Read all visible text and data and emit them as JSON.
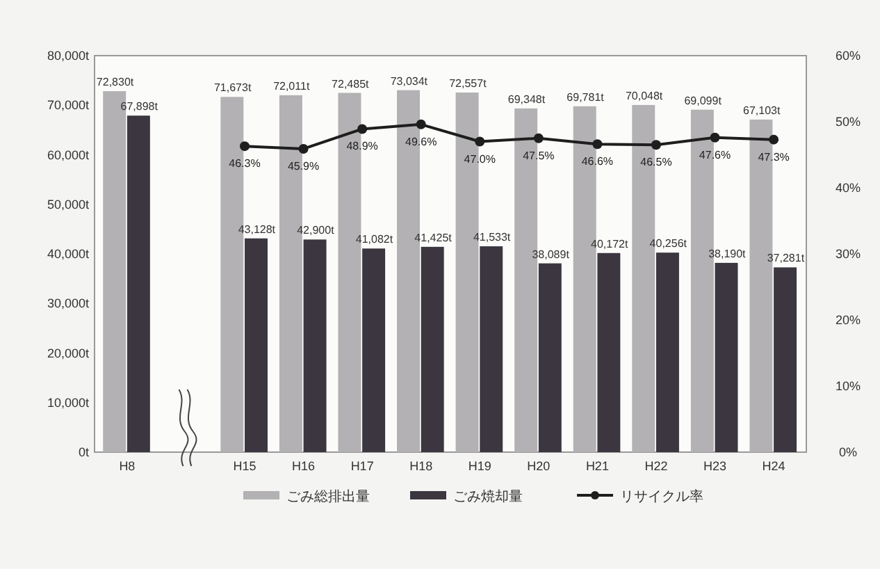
{
  "chart_data": {
    "type": "bar",
    "categories": [
      "H8",
      null,
      "H15",
      "H16",
      "H17",
      "H18",
      "H19",
      "H20",
      "H21",
      "H22",
      "H23",
      "H24"
    ],
    "series": [
      {
        "name": "ごみ総排出量",
        "color": "#b3b1b3",
        "values": [
          72830,
          null,
          71673,
          72011,
          72485,
          73034,
          72557,
          69348,
          69781,
          70048,
          69099,
          67103
        ],
        "value_labels": [
          "72,830t",
          null,
          "71,673t",
          "72,011t",
          "72,485t",
          "73,034t",
          "72,557t",
          "69,348t",
          "69,781t",
          "70,048t",
          "69,099t",
          "67,103t"
        ]
      },
      {
        "name": "ごみ焼却量",
        "color": "#3b3640",
        "values": [
          67898,
          null,
          43128,
          42900,
          41082,
          41425,
          41533,
          38089,
          40172,
          40256,
          38190,
          37281
        ],
        "value_labels": [
          "67,898t",
          null,
          "43,128t",
          "42,900t",
          "41,082t",
          "41,425t",
          "41,533t",
          "38,089t",
          "40,172t",
          "40,256t",
          "38,190t",
          "37,281t"
        ]
      },
      {
        "name": "リサイクル率",
        "type": "line",
        "axis": "y2",
        "color": "#1e1e1e",
        "marker": "circle",
        "values": [
          null,
          null,
          46.3,
          45.9,
          48.9,
          49.6,
          47.0,
          47.5,
          46.6,
          46.5,
          47.6,
          47.3
        ],
        "value_labels": [
          null,
          null,
          "46.3%",
          "45.9%",
          "48.9%",
          "49.6%",
          "47.0%",
          "47.5%",
          "46.6%",
          "46.5%",
          "47.6%",
          "47.3%"
        ]
      }
    ],
    "ylim": [
      0,
      80000
    ],
    "yticks": [
      {
        "value": 0,
        "label": "0t"
      },
      {
        "value": 10000,
        "label": "10,000t"
      },
      {
        "value": 20000,
        "label": "20,000t"
      },
      {
        "value": 30000,
        "label": "30,000t"
      },
      {
        "value": 40000,
        "label": "40,000t"
      },
      {
        "value": 50000,
        "label": "50,000t"
      },
      {
        "value": 60000,
        "label": "60,000t"
      },
      {
        "value": 70000,
        "label": "70,000t"
      },
      {
        "value": 80000,
        "label": "80,000t"
      }
    ],
    "y2lim": [
      0,
      60
    ],
    "y2ticks": [
      {
        "value": 0,
        "label": "0%"
      },
      {
        "value": 10,
        "label": "10%"
      },
      {
        "value": 20,
        "label": "20%"
      },
      {
        "value": 30,
        "label": "30%"
      },
      {
        "value": 40,
        "label": "40%"
      },
      {
        "value": 50,
        "label": "50%"
      },
      {
        "value": 60,
        "label": "60%"
      }
    ],
    "grid": false,
    "legend": "bottom"
  }
}
